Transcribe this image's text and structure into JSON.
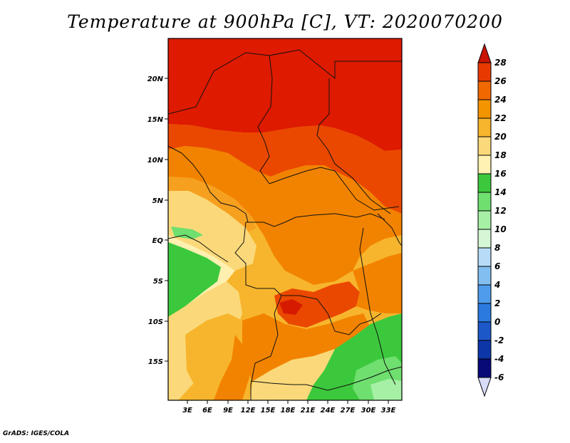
{
  "title": "Temperature at 900hPa [C], VT: 2020070200",
  "footer": "GrADS: IGES/COLA",
  "map": {
    "lat_labels": [
      "20N",
      "15N",
      "10N",
      "5N",
      "EQ",
      "5S",
      "10S",
      "15S"
    ],
    "lon_labels": [
      "3E",
      "6E",
      "9E",
      "12E",
      "15E",
      "18E",
      "21E",
      "24E",
      "27E",
      "30E",
      "33E"
    ]
  },
  "colorbar": {
    "labels": [
      "28",
      "26",
      "24",
      "22",
      "20",
      "18",
      "16",
      "14",
      "12",
      "10",
      "8",
      "6",
      "4",
      "2",
      "0",
      "-2",
      "-4",
      "-6"
    ],
    "colors": [
      "#d61a00",
      "#e83a00",
      "#f06800",
      "#f49500",
      "#f7b52d",
      "#fbd97a",
      "#fff2b3",
      "#3cc83c",
      "#6fdf6f",
      "#a6f0a6",
      "#d5f7d5",
      "#b8dcf8",
      "#82bff0",
      "#509cec",
      "#2a7ae0",
      "#1c58c8",
      "#0d36a8",
      "#080a78"
    ],
    "top_arrow_color": "#c81400",
    "bottom_arrow_color": "#d8dcf8"
  }
}
